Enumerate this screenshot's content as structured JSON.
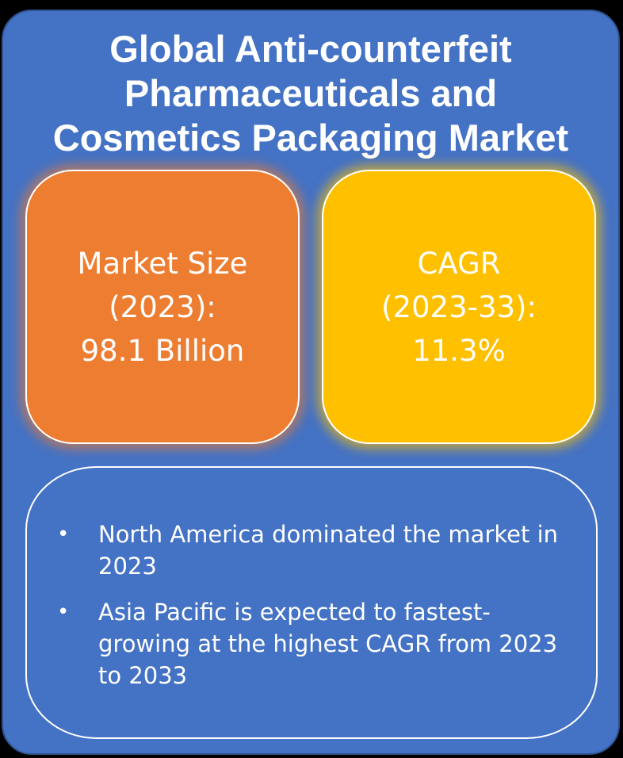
{
  "title": {
    "line1": "Global Anti-counterfeit",
    "line2": "Pharmaceuticals and",
    "line3": "Cosmetics Packaging Market"
  },
  "market_size": {
    "line1": "Market Size",
    "line2": "(2023):",
    "line3": "98.1 Billion",
    "color": "#ed7d31"
  },
  "cagr": {
    "line1": "CAGR",
    "line2": "(2023-33):",
    "line3": "11.3%",
    "color": "#ffc000"
  },
  "notes": {
    "items": [
      {
        "bullet": "•",
        "text": "North America dominated the market in 2023"
      },
      {
        "bullet": "•",
        "text": "Asia Pacific is expected to fastest-growing at the highest CAGR from 2023 to 2033"
      }
    ]
  },
  "colors": {
    "background": "#000000",
    "card": "#4472c4",
    "text": "#ffffff"
  }
}
